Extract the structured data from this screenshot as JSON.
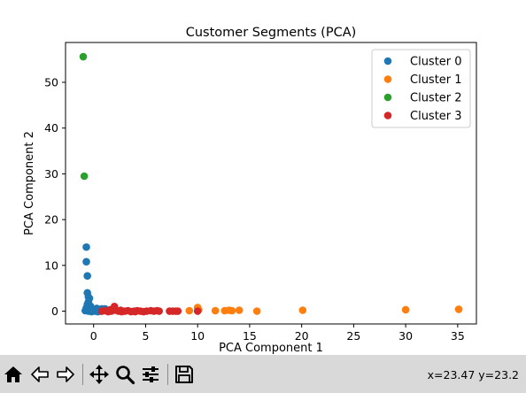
{
  "window": {
    "title": "Customer Segments (PCA)"
  },
  "chart_data": {
    "type": "scatter",
    "title": "Customer Segments (PCA)",
    "xlabel": "PCA Component 1",
    "ylabel": "PCA Component 2",
    "xlim": [
      -2.7,
      36.8
    ],
    "ylim": [
      -2.8,
      58.7
    ],
    "xticks": [
      0,
      5,
      10,
      15,
      20,
      25,
      30,
      35
    ],
    "yticks": [
      0,
      10,
      20,
      30,
      40,
      50
    ],
    "grid": false,
    "legend_position": "top-right",
    "series": [
      {
        "name": "Cluster 0",
        "color": "#1f77b4",
        "points": [
          [
            -0.7,
            14.0
          ],
          [
            -0.7,
            10.8
          ],
          [
            -0.6,
            7.7
          ],
          [
            -0.6,
            4.0
          ],
          [
            -0.5,
            3.1
          ],
          [
            -0.4,
            2.8
          ],
          [
            -0.5,
            2.0
          ],
          [
            -0.6,
            1.5
          ],
          [
            -0.3,
            1.1
          ],
          [
            -0.4,
            0.8
          ],
          [
            -0.7,
            0.7
          ],
          [
            -0.2,
            0.5
          ],
          [
            0.0,
            0.3
          ],
          [
            0.2,
            0.2
          ],
          [
            0.5,
            0.4
          ],
          [
            0.8,
            0.5
          ],
          [
            0.3,
            0.6
          ],
          [
            -0.8,
            0.1
          ],
          [
            -0.5,
            0.0
          ],
          [
            -0.2,
            -0.1
          ],
          [
            0.1,
            0.0
          ],
          [
            0.4,
            -0.1
          ],
          [
            0.7,
            0.0
          ],
          [
            1.0,
            0.2
          ],
          [
            1.1,
            0.5
          ],
          [
            0.6,
            0.1
          ],
          [
            -0.1,
            0.2
          ]
        ]
      },
      {
        "name": "Cluster 1",
        "color": "#ff7f0e",
        "points": [
          [
            9.2,
            0.1
          ],
          [
            10.0,
            0.8
          ],
          [
            10.1,
            0.3
          ],
          [
            11.7,
            0.1
          ],
          [
            12.6,
            0.1
          ],
          [
            13.0,
            0.2
          ],
          [
            13.3,
            0.1
          ],
          [
            14.0,
            0.2
          ],
          [
            15.7,
            0.0
          ],
          [
            20.1,
            0.2
          ],
          [
            30.0,
            0.3
          ],
          [
            35.1,
            0.4
          ]
        ]
      },
      {
        "name": "Cluster 2",
        "color": "#2ca02c",
        "points": [
          [
            -1.0,
            55.6
          ],
          [
            -0.9,
            29.5
          ]
        ]
      },
      {
        "name": "Cluster 3",
        "color": "#d62728",
        "points": [
          [
            0.8,
            0.0
          ],
          [
            1.1,
            0.1
          ],
          [
            1.4,
            -0.1
          ],
          [
            1.7,
            0.0
          ],
          [
            2.0,
            1.0
          ],
          [
            2.1,
            0.2
          ],
          [
            2.4,
            0.0
          ],
          [
            2.7,
            -0.1
          ],
          [
            3.0,
            0.0
          ],
          [
            3.3,
            0.1
          ],
          [
            3.6,
            -0.1
          ],
          [
            3.9,
            0.0
          ],
          [
            4.2,
            0.1
          ],
          [
            4.5,
            0.0
          ],
          [
            4.8,
            -0.1
          ],
          [
            5.1,
            0.0
          ],
          [
            5.5,
            0.1
          ],
          [
            5.8,
            0.0
          ],
          [
            6.1,
            0.1
          ],
          [
            6.3,
            0.0
          ],
          [
            7.3,
            0.0
          ],
          [
            7.6,
            0.0
          ],
          [
            7.9,
            0.0
          ],
          [
            8.1,
            0.0
          ],
          [
            10.0,
            0.0
          ],
          [
            1.6,
            0.3
          ],
          [
            2.6,
            0.2
          ],
          [
            4.0,
            -0.1
          ]
        ]
      }
    ]
  },
  "toolbar": {
    "buttons": [
      {
        "name": "home-button",
        "icon": "home-icon"
      },
      {
        "name": "back-button",
        "icon": "arrow-left-icon"
      },
      {
        "name": "forward-button",
        "icon": "arrow-right-icon"
      },
      {
        "name": "pan-button",
        "icon": "move-icon"
      },
      {
        "name": "zoom-button",
        "icon": "magnifier-icon"
      },
      {
        "name": "configure-subplots-button",
        "icon": "sliders-icon"
      },
      {
        "name": "save-button",
        "icon": "floppy-disk-icon"
      }
    ],
    "coordinates": "x=23.47 y=23.2"
  }
}
